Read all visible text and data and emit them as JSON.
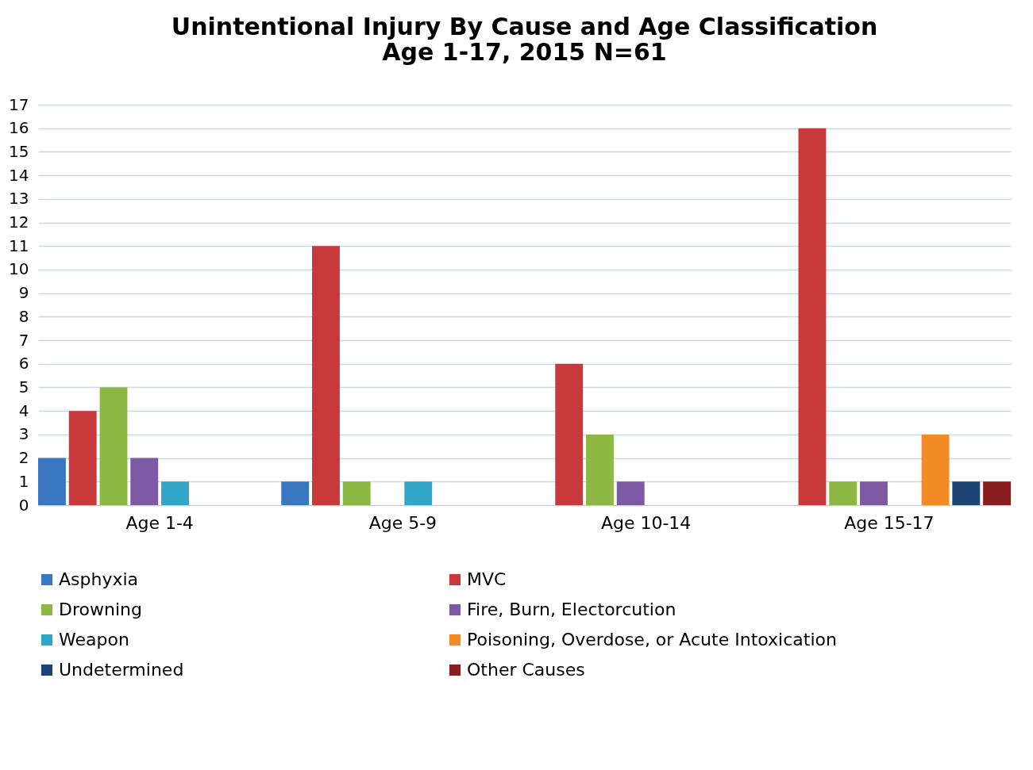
{
  "chart_data": {
    "type": "bar",
    "title": "Unintentional Injury By Cause and Age Classification\nAge 1-17, 2015      N=61",
    "categories": [
      "Age 1-4",
      "Age 5-9",
      "Age 10-14",
      "Age 15-17"
    ],
    "series": [
      {
        "name": "Asphyxia",
        "color": "#3a76c2",
        "values": [
          2,
          1,
          null,
          null
        ]
      },
      {
        "name": "MVC",
        "color": "#c9383a",
        "values": [
          4,
          11,
          6,
          16
        ]
      },
      {
        "name": "Drowning",
        "color": "#8db843",
        "values": [
          5,
          1,
          3,
          1
        ]
      },
      {
        "name": "Fire, Burn, Electorcution",
        "color": "#7d59a3",
        "values": [
          2,
          null,
          1,
          1
        ]
      },
      {
        "name": "Weapon",
        "color": "#32a6c6",
        "values": [
          1,
          1,
          null,
          null
        ]
      },
      {
        "name": "Poisoning, Overdose, or Acute Intoxication",
        "color": "#f28a26",
        "values": [
          null,
          null,
          null,
          3
        ]
      },
      {
        "name": "Undetermined",
        "color": "#1d4474",
        "values": [
          null,
          null,
          null,
          1
        ]
      },
      {
        "name": "Other Causes",
        "color": "#8a1d1d",
        "values": [
          null,
          null,
          null,
          1
        ]
      }
    ],
    "ylim": [
      0,
      17
    ],
    "yticks": [
      0,
      1,
      2,
      3,
      4,
      5,
      6,
      7,
      8,
      9,
      10,
      11,
      12,
      13,
      14,
      15,
      16,
      17
    ],
    "grid": "y",
    "legend": "bottom"
  }
}
